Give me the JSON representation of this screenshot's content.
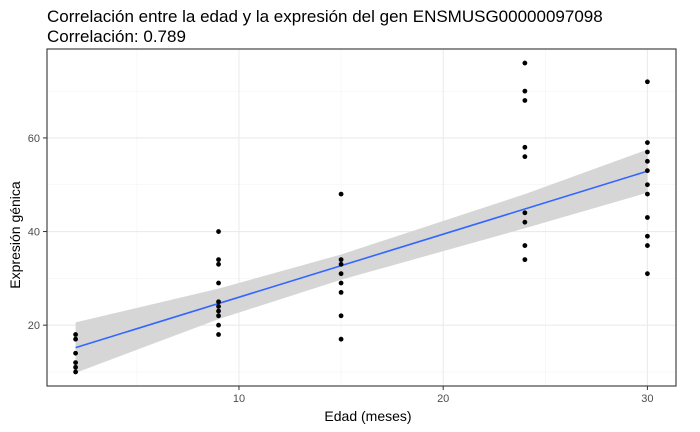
{
  "chart_data": {
    "type": "scatter",
    "title": "Correlación entre la edad y la expresión del gen ENSMUSG00000097098",
    "subtitle": "Correlación: 0.789",
    "xlabel": "Edad (meses)",
    "ylabel": "Expresión génica",
    "xlim": [
      0.6,
      31.4
    ],
    "ylim": [
      7,
      79
    ],
    "x_ticks": [
      10,
      20,
      30
    ],
    "y_ticks": [
      20,
      40,
      60
    ],
    "grid": true,
    "background": "panel-bordered",
    "points": [
      {
        "x": 2,
        "y": 10
      },
      {
        "x": 2,
        "y": 11
      },
      {
        "x": 2,
        "y": 12
      },
      {
        "x": 2,
        "y": 14
      },
      {
        "x": 2,
        "y": 17
      },
      {
        "x": 2,
        "y": 18
      },
      {
        "x": 9,
        "y": 18
      },
      {
        "x": 9,
        "y": 20
      },
      {
        "x": 9,
        "y": 22
      },
      {
        "x": 9,
        "y": 23
      },
      {
        "x": 9,
        "y": 24
      },
      {
        "x": 9,
        "y": 25
      },
      {
        "x": 9,
        "y": 29
      },
      {
        "x": 9,
        "y": 33
      },
      {
        "x": 9,
        "y": 34
      },
      {
        "x": 9,
        "y": 40
      },
      {
        "x": 15,
        "y": 17
      },
      {
        "x": 15,
        "y": 22
      },
      {
        "x": 15,
        "y": 27
      },
      {
        "x": 15,
        "y": 29
      },
      {
        "x": 15,
        "y": 31
      },
      {
        "x": 15,
        "y": 33
      },
      {
        "x": 15,
        "y": 34
      },
      {
        "x": 15,
        "y": 48
      },
      {
        "x": 24,
        "y": 34
      },
      {
        "x": 24,
        "y": 37
      },
      {
        "x": 24,
        "y": 42
      },
      {
        "x": 24,
        "y": 44
      },
      {
        "x": 24,
        "y": 56
      },
      {
        "x": 24,
        "y": 58
      },
      {
        "x": 24,
        "y": 68
      },
      {
        "x": 24,
        "y": 70
      },
      {
        "x": 24,
        "y": 76
      },
      {
        "x": 30,
        "y": 31
      },
      {
        "x": 30,
        "y": 37
      },
      {
        "x": 30,
        "y": 39
      },
      {
        "x": 30,
        "y": 43
      },
      {
        "x": 30,
        "y": 48
      },
      {
        "x": 30,
        "y": 50
      },
      {
        "x": 30,
        "y": 53
      },
      {
        "x": 30,
        "y": 55
      },
      {
        "x": 30,
        "y": 57
      },
      {
        "x": 30,
        "y": 59
      },
      {
        "x": 30,
        "y": 72
      }
    ],
    "fit_line": {
      "x": [
        2,
        30
      ],
      "y": [
        15.2,
        52.9
      ]
    },
    "confidence_band": {
      "x": [
        2,
        9,
        15,
        24,
        30
      ],
      "lower": [
        9.8,
        21.3,
        29.7,
        40.7,
        48.3
      ],
      "upper": [
        20.6,
        27.8,
        35.1,
        48.0,
        57.5
      ]
    },
    "colors": {
      "points": "#000000",
      "fit_line": "#3366ff",
      "band": "#d4d4d4",
      "grid_major": "#ebebeb",
      "grid_minor": "#f3f3f3",
      "panel_border": "#333333"
    }
  }
}
